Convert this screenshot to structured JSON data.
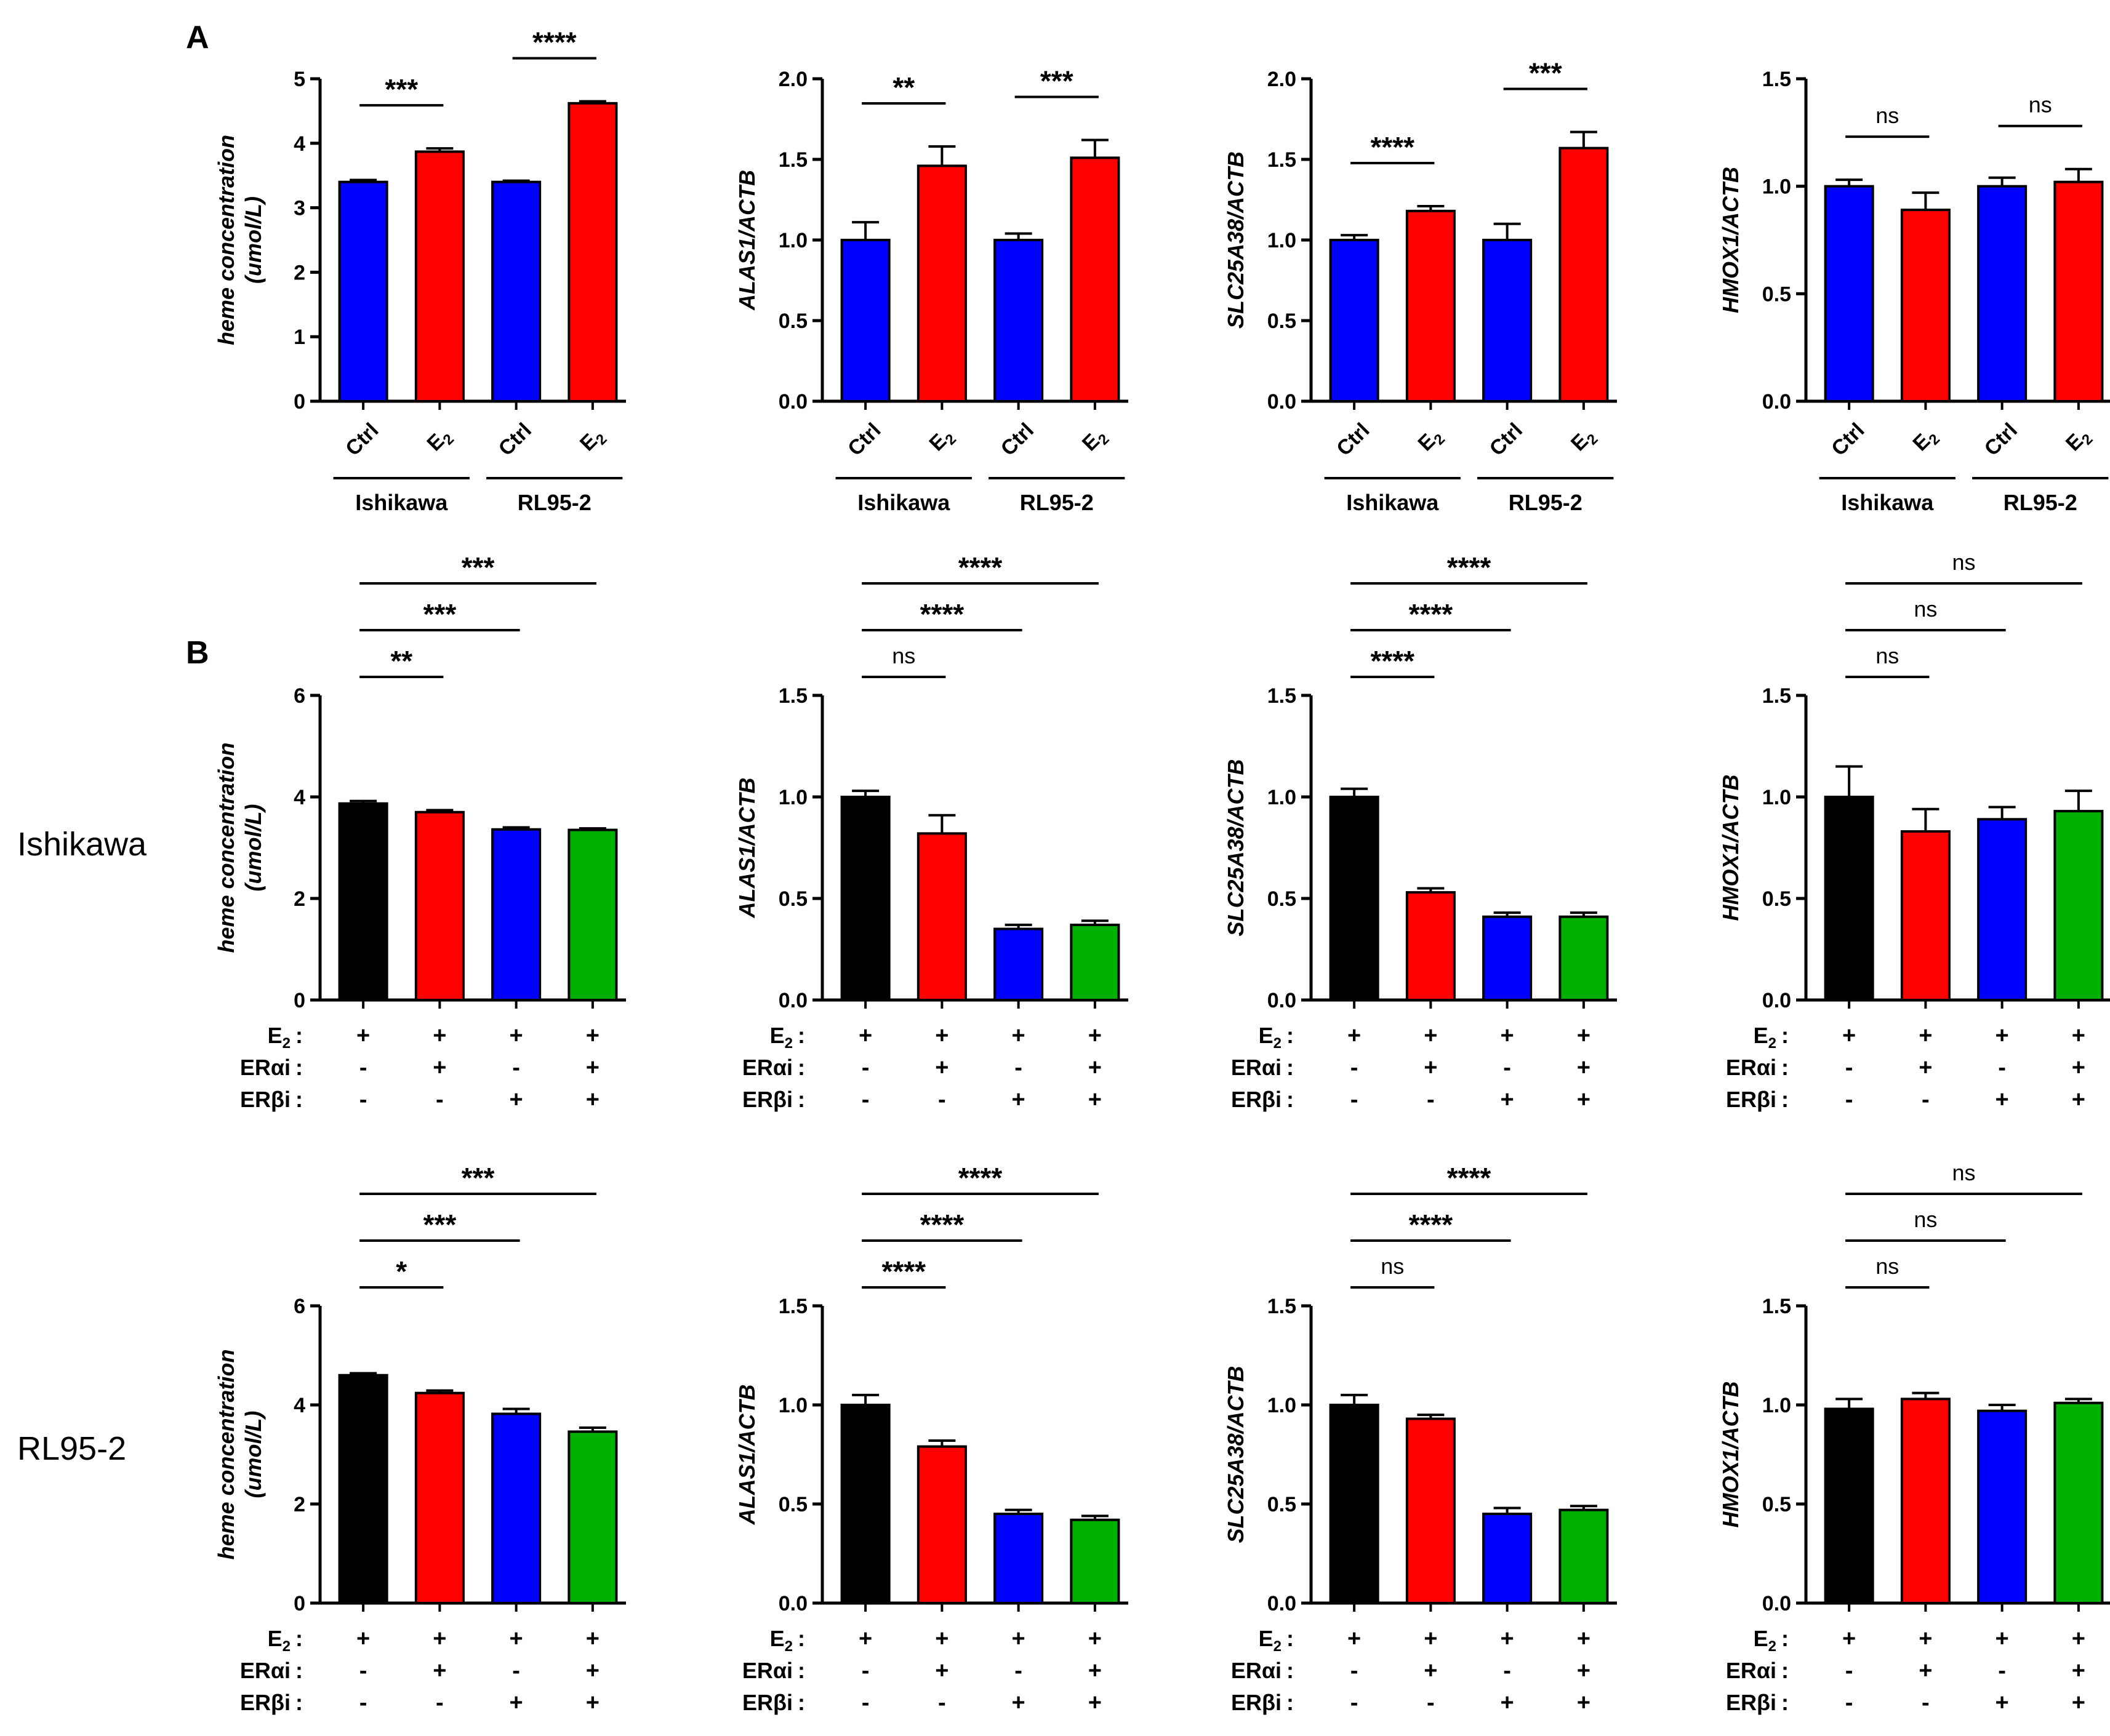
{
  "figure": {
    "panel_a_label": "A",
    "panel_b_label": "B",
    "row_labels": [
      "Ishikawa",
      "RL95-2"
    ],
    "colors": {
      "Ctrl": "#0000ff",
      "E2": "#ff0000",
      "black": "#000000",
      "red": "#ff0000",
      "blue": "#0000ff",
      "green": "#00b000"
    }
  },
  "chart_data": [
    {
      "id": "A1",
      "type": "bar",
      "panel": "A",
      "ylabel": "heme concentration (umol/L)",
      "ylabel_lines": [
        "heme concentration",
        "(umol/L)"
      ],
      "ylim": [
        0,
        5
      ],
      "yticks": [
        "0",
        "1",
        "2",
        "3",
        "4",
        "5"
      ],
      "categories": [
        "Ctrl",
        "E2",
        "Ctrl",
        "E2"
      ],
      "groups": [
        "Ishikawa",
        "RL95-2"
      ],
      "values": [
        3.4,
        3.87,
        3.4,
        4.62
      ],
      "errors": [
        0.03,
        0.05,
        0.02,
        0.03
      ],
      "colors": [
        "#0000ff",
        "#ff0000",
        "#0000ff",
        "#ff0000"
      ],
      "significance": [
        {
          "from": 0,
          "to": 1,
          "level": 1,
          "label": "***"
        },
        {
          "from": 2,
          "to": 3,
          "level": 1,
          "label": "****"
        }
      ]
    },
    {
      "id": "A2",
      "type": "bar",
      "panel": "A",
      "ylabel": "ALAS1/ACTB",
      "ylabel_lines": [
        "ALAS1/ACTB"
      ],
      "ylim": [
        0,
        2
      ],
      "yticks": [
        "0.0",
        "0.5",
        "1.0",
        "1.5",
        "2.0"
      ],
      "categories": [
        "Ctrl",
        "E2",
        "Ctrl",
        "E2"
      ],
      "groups": [
        "Ishikawa",
        "RL95-2"
      ],
      "values": [
        1.0,
        1.46,
        1.0,
        1.51
      ],
      "errors": [
        0.11,
        0.12,
        0.04,
        0.11
      ],
      "colors": [
        "#0000ff",
        "#ff0000",
        "#0000ff",
        "#ff0000"
      ],
      "significance": [
        {
          "from": 0,
          "to": 1,
          "level": 1,
          "label": "**"
        },
        {
          "from": 2,
          "to": 3,
          "level": 1,
          "label": "***"
        }
      ]
    },
    {
      "id": "A3",
      "type": "bar",
      "panel": "A",
      "ylabel": "SLC25A38/ACTB",
      "ylabel_lines": [
        "SLC25A38/ACTB"
      ],
      "ylim": [
        0,
        2
      ],
      "yticks": [
        "0.0",
        "0.5",
        "1.0",
        "1.5",
        "2.0"
      ],
      "categories": [
        "Ctrl",
        "E2",
        "Ctrl",
        "E2"
      ],
      "groups": [
        "Ishikawa",
        "RL95-2"
      ],
      "values": [
        1.0,
        1.18,
        1.0,
        1.57
      ],
      "errors": [
        0.03,
        0.03,
        0.1,
        0.1
      ],
      "colors": [
        "#0000ff",
        "#ff0000",
        "#0000ff",
        "#ff0000"
      ],
      "significance": [
        {
          "from": 0,
          "to": 1,
          "level": 1,
          "label": "****"
        },
        {
          "from": 2,
          "to": 3,
          "level": 1,
          "label": "***"
        }
      ]
    },
    {
      "id": "A4",
      "type": "bar",
      "panel": "A",
      "ylabel": "HMOX1/ACTB",
      "ylabel_lines": [
        "HMOX1/ACTB"
      ],
      "ylim": [
        0,
        1.5
      ],
      "yticks": [
        "0.0",
        "0.5",
        "1.0",
        "1.5"
      ],
      "categories": [
        "Ctrl",
        "E2",
        "Ctrl",
        "E2"
      ],
      "groups": [
        "Ishikawa",
        "RL95-2"
      ],
      "values": [
        1.0,
        0.89,
        1.0,
        1.02
      ],
      "errors": [
        0.03,
        0.08,
        0.04,
        0.06
      ],
      "colors": [
        "#0000ff",
        "#ff0000",
        "#0000ff",
        "#ff0000"
      ],
      "significance": [
        {
          "from": 0,
          "to": 1,
          "level": 1,
          "label": "ns"
        },
        {
          "from": 2,
          "to": 3,
          "level": 1,
          "label": "ns"
        }
      ]
    },
    {
      "id": "B1",
      "type": "bar",
      "panel": "B",
      "row": "Ishikawa",
      "ylabel": "heme concentration (umol/L)",
      "ylabel_lines": [
        "heme concentration",
        "(umol/L)"
      ],
      "ylim": [
        0,
        6
      ],
      "yticks": [
        "0",
        "2",
        "4",
        "6"
      ],
      "treatment_rows": [
        {
          "name": "E2",
          "marks": [
            "+",
            "+",
            "+",
            "+"
          ]
        },
        {
          "name": "ERαi",
          "marks": [
            "-",
            "+",
            "-",
            "+"
          ]
        },
        {
          "name": "ERβi",
          "marks": [
            "-",
            "-",
            "+",
            "+"
          ]
        }
      ],
      "values": [
        3.87,
        3.7,
        3.36,
        3.35
      ],
      "errors": [
        0.05,
        0.04,
        0.04,
        0.03
      ],
      "colors": [
        "#000000",
        "#ff0000",
        "#0000ff",
        "#00b000"
      ],
      "significance": [
        {
          "from": 0,
          "to": 1,
          "level": 1,
          "label": "**"
        },
        {
          "from": 0,
          "to": 2,
          "level": 2,
          "label": "***"
        },
        {
          "from": 0,
          "to": 3,
          "level": 3,
          "label": "***"
        }
      ]
    },
    {
      "id": "B2",
      "type": "bar",
      "panel": "B",
      "row": "Ishikawa",
      "ylabel": "ALAS1/ACTB",
      "ylabel_lines": [
        "ALAS1/ACTB"
      ],
      "ylim": [
        0,
        1.5
      ],
      "yticks": [
        "0.0",
        "0.5",
        "1.0",
        "1.5"
      ],
      "treatment_rows": [
        {
          "name": "E2",
          "marks": [
            "+",
            "+",
            "+",
            "+"
          ]
        },
        {
          "name": "ERαi",
          "marks": [
            "-",
            "+",
            "-",
            "+"
          ]
        },
        {
          "name": "ERβi",
          "marks": [
            "-",
            "-",
            "+",
            "+"
          ]
        }
      ],
      "values": [
        1.0,
        0.82,
        0.35,
        0.37
      ],
      "errors": [
        0.03,
        0.09,
        0.02,
        0.02
      ],
      "colors": [
        "#000000",
        "#ff0000",
        "#0000ff",
        "#00b000"
      ],
      "significance": [
        {
          "from": 0,
          "to": 1,
          "level": 1,
          "label": "ns"
        },
        {
          "from": 0,
          "to": 2,
          "level": 2,
          "label": "****"
        },
        {
          "from": 0,
          "to": 3,
          "level": 3,
          "label": "****"
        }
      ]
    },
    {
      "id": "B3",
      "type": "bar",
      "panel": "B",
      "row": "Ishikawa",
      "ylabel": "SLC25A38/ACTB",
      "ylabel_lines": [
        "SLC25A38/ACTB"
      ],
      "ylim": [
        0,
        1.5
      ],
      "yticks": [
        "0.0",
        "0.5",
        "1.0",
        "1.5"
      ],
      "treatment_rows": [
        {
          "name": "E2",
          "marks": [
            "+",
            "+",
            "+",
            "+"
          ]
        },
        {
          "name": "ERαi",
          "marks": [
            "-",
            "+",
            "-",
            "+"
          ]
        },
        {
          "name": "ERβi",
          "marks": [
            "-",
            "-",
            "+",
            "+"
          ]
        }
      ],
      "values": [
        1.0,
        0.53,
        0.41,
        0.41
      ],
      "errors": [
        0.04,
        0.02,
        0.02,
        0.02
      ],
      "colors": [
        "#000000",
        "#ff0000",
        "#0000ff",
        "#00b000"
      ],
      "significance": [
        {
          "from": 0,
          "to": 1,
          "level": 1,
          "label": "****"
        },
        {
          "from": 0,
          "to": 2,
          "level": 2,
          "label": "****"
        },
        {
          "from": 0,
          "to": 3,
          "level": 3,
          "label": "****"
        }
      ]
    },
    {
      "id": "B4",
      "type": "bar",
      "panel": "B",
      "row": "Ishikawa",
      "ylabel": "HMOX1/ACTB",
      "ylabel_lines": [
        "HMOX1/ACTB"
      ],
      "ylim": [
        0,
        1.5
      ],
      "yticks": [
        "0.0",
        "0.5",
        "1.0",
        "1.5"
      ],
      "treatment_rows": [
        {
          "name": "E2",
          "marks": [
            "+",
            "+",
            "+",
            "+"
          ]
        },
        {
          "name": "ERαi",
          "marks": [
            "-",
            "+",
            "-",
            "+"
          ]
        },
        {
          "name": "ERβi",
          "marks": [
            "-",
            "-",
            "+",
            "+"
          ]
        }
      ],
      "values": [
        1.0,
        0.83,
        0.89,
        0.93
      ],
      "errors": [
        0.15,
        0.11,
        0.06,
        0.1
      ],
      "colors": [
        "#000000",
        "#ff0000",
        "#0000ff",
        "#00b000"
      ],
      "significance": [
        {
          "from": 0,
          "to": 1,
          "level": 1,
          "label": "ns"
        },
        {
          "from": 0,
          "to": 2,
          "level": 2,
          "label": "ns"
        },
        {
          "from": 0,
          "to": 3,
          "level": 3,
          "label": "ns"
        }
      ]
    },
    {
      "id": "B5",
      "type": "bar",
      "panel": "B",
      "row": "RL95-2",
      "ylabel": "heme concentration (umol/L)",
      "ylabel_lines": [
        "heme concentration",
        "(umol/L)"
      ],
      "ylim": [
        0,
        6
      ],
      "yticks": [
        "0",
        "2",
        "4",
        "6"
      ],
      "treatment_rows": [
        {
          "name": "E2",
          "marks": [
            "+",
            "+",
            "+",
            "+"
          ]
        },
        {
          "name": "ERαi",
          "marks": [
            "-",
            "+",
            "-",
            "+"
          ]
        },
        {
          "name": "ERβi",
          "marks": [
            "-",
            "-",
            "+",
            "+"
          ]
        }
      ],
      "values": [
        4.6,
        4.24,
        3.82,
        3.46
      ],
      "errors": [
        0.04,
        0.05,
        0.1,
        0.08
      ],
      "colors": [
        "#000000",
        "#ff0000",
        "#0000ff",
        "#00b000"
      ],
      "significance": [
        {
          "from": 0,
          "to": 1,
          "level": 1,
          "label": "*"
        },
        {
          "from": 0,
          "to": 2,
          "level": 2,
          "label": "***"
        },
        {
          "from": 0,
          "to": 3,
          "level": 3,
          "label": "***"
        }
      ]
    },
    {
      "id": "B6",
      "type": "bar",
      "panel": "B",
      "row": "RL95-2",
      "ylabel": "ALAS1/ACTB",
      "ylabel_lines": [
        "ALAS1/ACTB"
      ],
      "ylim": [
        0,
        1.5
      ],
      "yticks": [
        "0.0",
        "0.5",
        "1.0",
        "1.5"
      ],
      "treatment_rows": [
        {
          "name": "E2",
          "marks": [
            "+",
            "+",
            "+",
            "+"
          ]
        },
        {
          "name": "ERαi",
          "marks": [
            "-",
            "+",
            "-",
            "+"
          ]
        },
        {
          "name": "ERβi",
          "marks": [
            "-",
            "-",
            "+",
            "+"
          ]
        }
      ],
      "values": [
        1.0,
        0.79,
        0.45,
        0.42
      ],
      "errors": [
        0.05,
        0.03,
        0.02,
        0.02
      ],
      "colors": [
        "#000000",
        "#ff0000",
        "#0000ff",
        "#00b000"
      ],
      "significance": [
        {
          "from": 0,
          "to": 1,
          "level": 1,
          "label": "****"
        },
        {
          "from": 0,
          "to": 2,
          "level": 2,
          "label": "****"
        },
        {
          "from": 0,
          "to": 3,
          "level": 3,
          "label": "****"
        }
      ]
    },
    {
      "id": "B7",
      "type": "bar",
      "panel": "B",
      "row": "RL95-2",
      "ylabel": "SLC25A38/ACTB",
      "ylabel_lines": [
        "SLC25A38/ACTB"
      ],
      "ylim": [
        0,
        1.5
      ],
      "yticks": [
        "0.0",
        "0.5",
        "1.0",
        "1.5"
      ],
      "treatment_rows": [
        {
          "name": "E2",
          "marks": [
            "+",
            "+",
            "+",
            "+"
          ]
        },
        {
          "name": "ERαi",
          "marks": [
            "-",
            "+",
            "-",
            "+"
          ]
        },
        {
          "name": "ERβi",
          "marks": [
            "-",
            "-",
            "+",
            "+"
          ]
        }
      ],
      "values": [
        1.0,
        0.93,
        0.45,
        0.47
      ],
      "errors": [
        0.05,
        0.02,
        0.03,
        0.02
      ],
      "colors": [
        "#000000",
        "#ff0000",
        "#0000ff",
        "#00b000"
      ],
      "significance": [
        {
          "from": 0,
          "to": 1,
          "level": 1,
          "label": "ns"
        },
        {
          "from": 0,
          "to": 2,
          "level": 2,
          "label": "****"
        },
        {
          "from": 0,
          "to": 3,
          "level": 3,
          "label": "****"
        }
      ]
    },
    {
      "id": "B8",
      "type": "bar",
      "panel": "B",
      "row": "RL95-2",
      "ylabel": "HMOX1/ACTB",
      "ylabel_lines": [
        "HMOX1/ACTB"
      ],
      "ylim": [
        0,
        1.5
      ],
      "yticks": [
        "0.0",
        "0.5",
        "1.0",
        "1.5"
      ],
      "treatment_rows": [
        {
          "name": "E2",
          "marks": [
            "+",
            "+",
            "+",
            "+"
          ]
        },
        {
          "name": "ERαi",
          "marks": [
            "-",
            "+",
            "-",
            "+"
          ]
        },
        {
          "name": "ERβi",
          "marks": [
            "-",
            "-",
            "+",
            "+"
          ]
        }
      ],
      "values": [
        0.98,
        1.03,
        0.97,
        1.01
      ],
      "errors": [
        0.05,
        0.03,
        0.03,
        0.02
      ],
      "colors": [
        "#000000",
        "#ff0000",
        "#0000ff",
        "#00b000"
      ],
      "significance": [
        {
          "from": 0,
          "to": 1,
          "level": 1,
          "label": "ns"
        },
        {
          "from": 0,
          "to": 2,
          "level": 2,
          "label": "ns"
        },
        {
          "from": 0,
          "to": 3,
          "level": 3,
          "label": "ns"
        }
      ]
    }
  ]
}
